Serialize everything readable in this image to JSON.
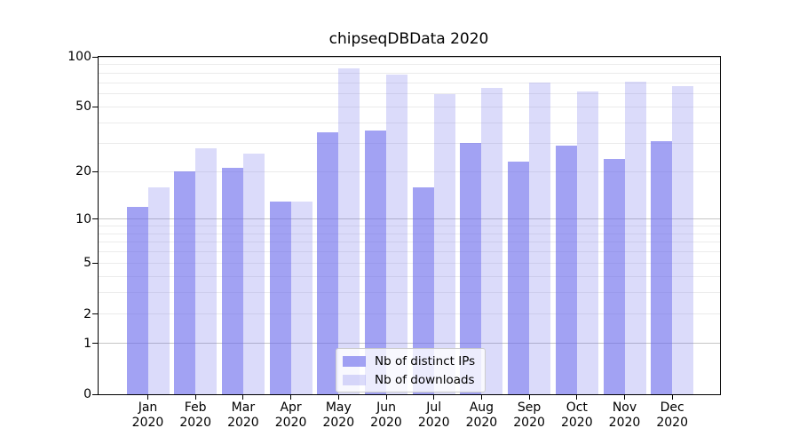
{
  "title": "chipseqDBData 2020",
  "y_axis": {
    "tick_values": [
      100,
      50,
      20,
      10,
      5,
      2,
      1,
      0
    ],
    "tick_labels": [
      "100",
      "50",
      "20",
      "10",
      "5",
      "2",
      "1",
      "0"
    ]
  },
  "x_axis": {
    "months": [
      "Jan",
      "Feb",
      "Mar",
      "Apr",
      "May",
      "Jun",
      "Jul",
      "Aug",
      "Sep",
      "Oct",
      "Nov",
      "Dec"
    ],
    "year": "2020"
  },
  "gridlines": {
    "major": [
      1,
      10,
      100
    ],
    "minor": [
      2,
      3,
      4,
      5,
      6,
      7,
      8,
      9,
      20,
      30,
      40,
      50,
      60,
      70,
      80,
      90
    ]
  },
  "colors": {
    "distinct_ips_bar": "rgba(105,105,235,0.62)",
    "downloads_bar": "rgba(105,105,235,0.24)",
    "major_grid": "#c6c6c6",
    "minor_grid": "#ebebeb"
  },
  "chart_data": {
    "type": "bar",
    "title": "chipseqDBData 2020",
    "scale": "symlog (log10(1+x))",
    "ylim": [
      0,
      100
    ],
    "y_ticks": [
      0,
      1,
      2,
      5,
      10,
      20,
      50,
      100
    ],
    "grid": "on",
    "legend_position": "lower center",
    "categories": [
      "Jan 2020",
      "Feb 2020",
      "Mar 2020",
      "Apr 2020",
      "May 2020",
      "Jun 2020",
      "Jul 2020",
      "Aug 2020",
      "Sep 2020",
      "Oct 2020",
      "Nov 2020",
      "Dec 2020"
    ],
    "series": [
      {
        "name": "Nb of distinct IPs",
        "color": "rgba(105,105,235,0.62)",
        "values": [
          12,
          20,
          21,
          13,
          35,
          36,
          16,
          30,
          23,
          29,
          24,
          31
        ]
      },
      {
        "name": "Nb of downloads",
        "color": "rgba(105,105,235,0.24)",
        "values": [
          16,
          28,
          26,
          13,
          85,
          78,
          60,
          65,
          70,
          62,
          71,
          67
        ]
      }
    ]
  }
}
